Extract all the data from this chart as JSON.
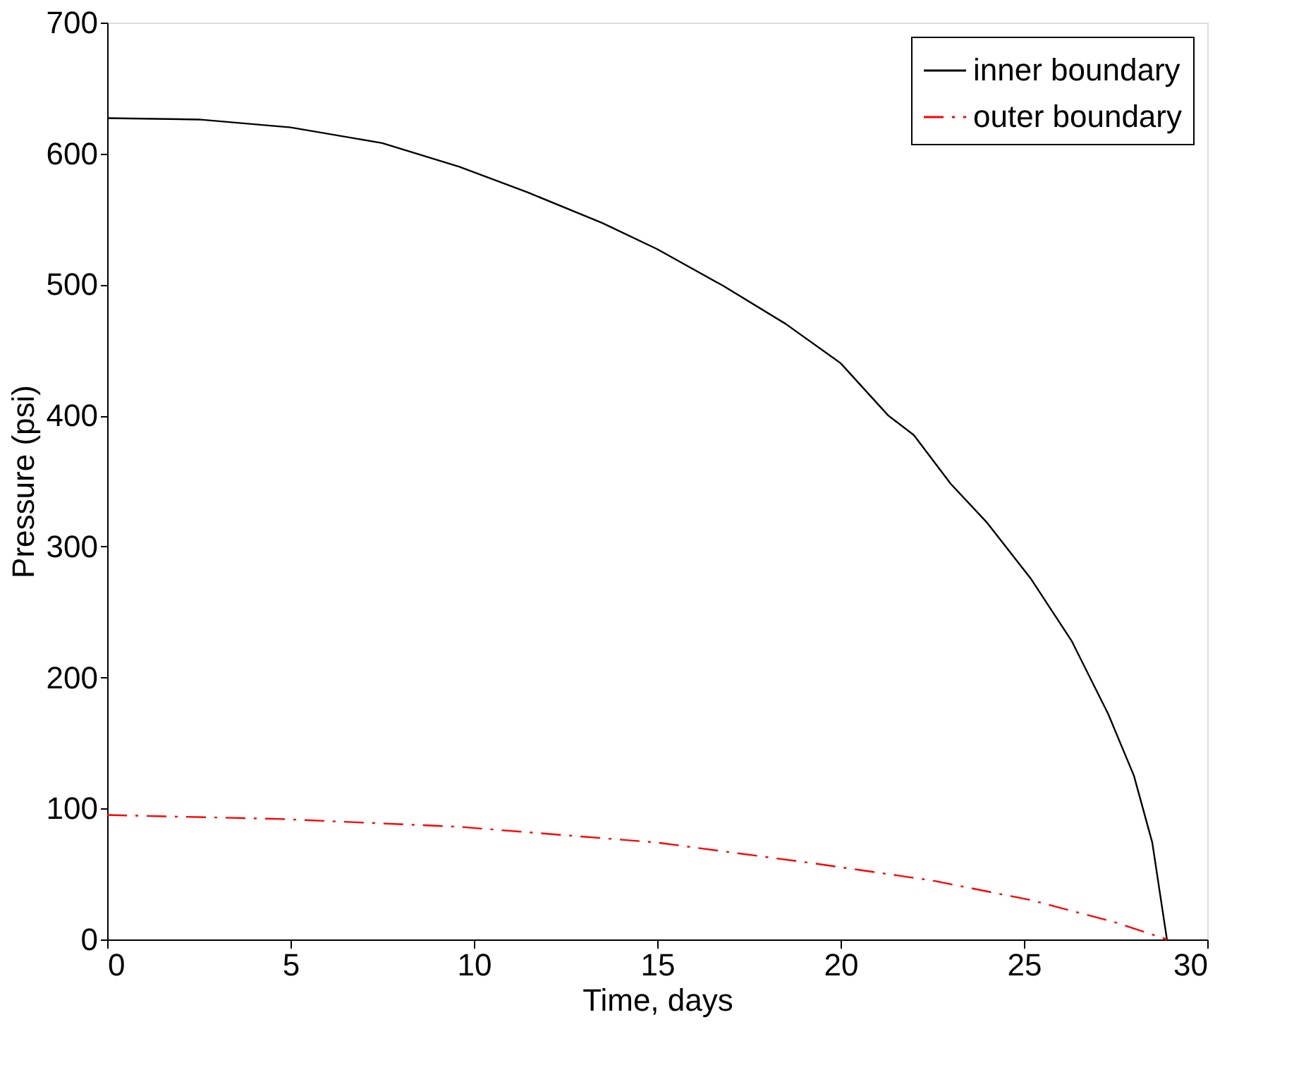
{
  "chart_data": {
    "type": "line",
    "xlabel": "Time, days",
    "ylabel": "Pressure (psi)",
    "xlim": [
      0,
      30
    ],
    "xticks": [
      0,
      5,
      10,
      15,
      20,
      25,
      30
    ],
    "ylim": [
      0,
      700
    ],
    "yticks": [
      0,
      100,
      200,
      300,
      400,
      500,
      600,
      700
    ],
    "grid": false,
    "legend": "top right",
    "series": [
      {
        "name": "inner boundary",
        "color": "#000000",
        "line_style": "solid",
        "x": [
          0,
          2.5,
          5,
          7.5,
          9.6,
          11.5,
          13.5,
          15,
          16.8,
          18.5,
          20,
          21.3,
          22,
          23,
          24,
          25.2,
          26.3,
          27.3,
          28,
          28.5,
          28.9
        ],
        "values": [
          627,
          626,
          620,
          608,
          590,
          570,
          547,
          527,
          499,
          470,
          440,
          400,
          385,
          348,
          318,
          275,
          228,
          172,
          125,
          74,
          0
        ]
      },
      {
        "name": "outer boundary",
        "color": "#ff0000",
        "line_style": "dashed",
        "x": [
          0,
          4.7,
          9.6,
          15,
          19.3,
          22.5,
          25.2,
          27.5,
          28.9
        ],
        "values": [
          95,
          92,
          86,
          74,
          58,
          45,
          30,
          13,
          0
        ]
      }
    ]
  }
}
